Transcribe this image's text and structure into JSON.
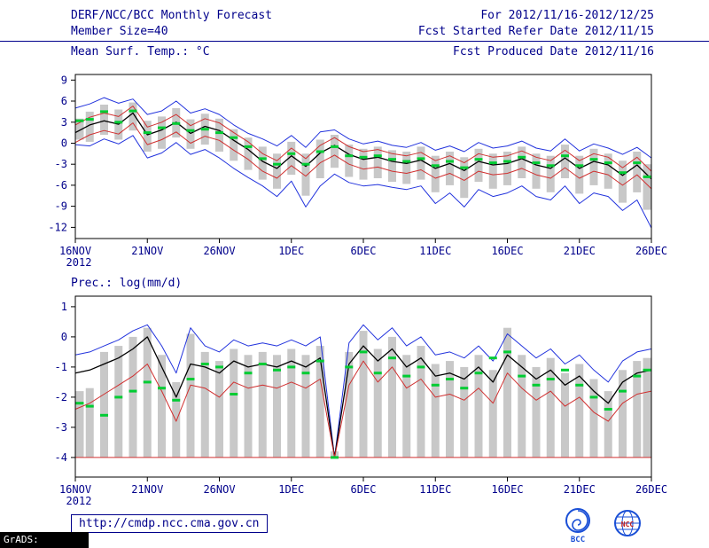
{
  "header": {
    "title": "DERF/NCC/BCC Monthly Forecast",
    "member_size": "Member Size=40",
    "temp_var_label": "Mean Surf. Temp.: °C",
    "for_range": "For 2012/11/16-2012/12/25",
    "refer_date": "Fcst Started Refer Date 2012/11/15",
    "produced_date": "Fcst Produced Date 2012/11/16",
    "accent_color": "#00008b"
  },
  "precip_panel_label": "Prec.: log(mm/d)",
  "footer": {
    "url": "http://cmdp.ncc.cma.gov.cn",
    "grads_credit": "GrADS: COLA/IGES",
    "logos": [
      "BCC",
      "NCC"
    ]
  },
  "colors": {
    "envelope_blue": "#2233dd",
    "quartile_red": "#d03030",
    "mean_black": "#000000",
    "marker_green": "#00cc33",
    "spread_gray": "#c8c8c8",
    "annot_navy": "#00008b"
  },
  "chart_data": [
    {
      "type": "line",
      "title": "Mean Surf. Temp.: °C",
      "x_unit": "forecast day (16NOV2012 = 0)",
      "n_points": 41,
      "x_day_range": [
        0,
        40
      ],
      "ylim": [
        -13.6,
        9.8
      ],
      "yticks": [
        9,
        6,
        3,
        0,
        -3,
        -6,
        -9,
        -12
      ],
      "xticks": [
        {
          "day": 0,
          "label": "16NOV"
        },
        {
          "day": 5,
          "label": "21NOV"
        },
        {
          "day": 10,
          "label": "26NOV"
        },
        {
          "day": 15,
          "label": "1DEC"
        },
        {
          "day": 20,
          "label": "6DEC"
        },
        {
          "day": 25,
          "label": "11DEC"
        },
        {
          "day": 30,
          "label": "16DEC"
        },
        {
          "day": 35,
          "label": "21DEC"
        },
        {
          "day": 40,
          "label": "26DEC"
        }
      ],
      "x_year_label": "2012",
      "grid": false,
      "legend": false,
      "bars": {
        "name": "ensemble spread bars",
        "color": "#c8c8c8",
        "top": [
          3.5,
          4.5,
          5.5,
          4.8,
          5.8,
          3.2,
          3.8,
          5.0,
          3.4,
          4.2,
          3.5,
          2.0,
          0.8,
          -0.5,
          -1.5,
          0.2,
          -1.5,
          0.5,
          1.2,
          -0.2,
          -0.8,
          -0.5,
          -1.0,
          -1.2,
          -0.5,
          -1.8,
          -1.2,
          -2.0,
          -0.8,
          -1.5,
          -1.2,
          -0.5,
          -1.5,
          -1.8,
          -0.2,
          -1.8,
          -0.8,
          -1.5,
          -2.5,
          -1.2,
          -3.0
        ],
        "bottom": [
          0.5,
          0.2,
          1.2,
          0.5,
          1.8,
          -1.2,
          -0.8,
          0.8,
          -0.8,
          -0.2,
          -1.2,
          -2.5,
          -3.8,
          -5.2,
          -6.5,
          -4.5,
          -7.5,
          -5.0,
          -3.5,
          -4.8,
          -5.2,
          -5.0,
          -5.5,
          -5.8,
          -5.2,
          -7.0,
          -6.0,
          -7.8,
          -5.5,
          -6.5,
          -6.0,
          -5.0,
          -6.5,
          -7.0,
          -5.0,
          -7.2,
          -6.0,
          -6.5,
          -8.5,
          -7.0,
          -9.5
        ]
      },
      "series": [
        {
          "name": "ensemble max (blue)",
          "color": "#2233dd",
          "width": 1,
          "values": [
            5.0,
            5.6,
            6.5,
            5.7,
            6.3,
            4.1,
            4.6,
            6.0,
            4.3,
            4.9,
            4.1,
            2.6,
            1.4,
            0.6,
            -0.4,
            1.1,
            -0.6,
            1.6,
            1.9,
            0.6,
            -0.1,
            0.3,
            -0.3,
            -0.6,
            0.1,
            -1.0,
            -0.4,
            -1.2,
            0.1,
            -0.7,
            -0.4,
            0.3,
            -0.7,
            -1.1,
            0.6,
            -1.1,
            -0.1,
            -0.7,
            -1.6,
            -0.6,
            -2.1
          ]
        },
        {
          "name": "upper quartile (red)",
          "color": "#d03030",
          "width": 1,
          "values": [
            2.6,
            3.7,
            4.3,
            3.8,
            5.3,
            2.3,
            3.0,
            4.1,
            2.5,
            3.5,
            2.9,
            1.5,
            0.2,
            -1.5,
            -2.5,
            -0.7,
            -2.2,
            -0.3,
            0.8,
            -0.5,
            -1.2,
            -0.9,
            -1.5,
            -1.8,
            -1.3,
            -2.5,
            -1.8,
            -2.8,
            -1.5,
            -2.0,
            -1.8,
            -1.1,
            -2.0,
            -2.5,
            -1.0,
            -2.5,
            -1.5,
            -2.0,
            -3.5,
            -2.0,
            -4.0
          ]
        },
        {
          "name": "ensemble mean (black)",
          "color": "#000000",
          "width": 1.3,
          "values": [
            1.5,
            2.6,
            3.2,
            2.7,
            4.3,
            1.2,
            1.9,
            3.0,
            1.4,
            2.4,
            1.8,
            0.4,
            -0.9,
            -2.6,
            -3.6,
            -1.8,
            -3.3,
            -1.4,
            -0.3,
            -1.6,
            -2.3,
            -2.0,
            -2.6,
            -2.9,
            -2.4,
            -3.6,
            -2.9,
            -3.9,
            -2.6,
            -3.1,
            -2.9,
            -2.2,
            -3.1,
            -3.6,
            -2.1,
            -3.6,
            -2.6,
            -3.1,
            -4.6,
            -3.1,
            -5.1
          ]
        },
        {
          "name": "lower quartile (red)",
          "color": "#d03030",
          "width": 1,
          "values": [
            0.1,
            1.2,
            1.8,
            1.3,
            2.9,
            -0.2,
            0.5,
            1.6,
            0.0,
            1.0,
            0.4,
            -1.0,
            -2.3,
            -4.0,
            -5.0,
            -3.2,
            -4.7,
            -2.8,
            -1.7,
            -3.0,
            -3.7,
            -3.4,
            -4.0,
            -4.3,
            -3.8,
            -5.0,
            -4.3,
            -5.3,
            -4.0,
            -4.5,
            -4.3,
            -3.6,
            -4.5,
            -5.0,
            -3.5,
            -5.0,
            -4.0,
            -4.5,
            -6.0,
            -4.5,
            -6.5
          ]
        },
        {
          "name": "ensemble min (blue)",
          "color": "#2233dd",
          "width": 1,
          "values": [
            -0.2,
            -0.4,
            0.6,
            -0.1,
            1.1,
            -2.1,
            -1.4,
            0.1,
            -1.6,
            -0.9,
            -2.1,
            -3.6,
            -4.9,
            -6.1,
            -7.6,
            -5.4,
            -9.1,
            -6.1,
            -4.4,
            -5.6,
            -6.1,
            -5.9,
            -6.3,
            -6.6,
            -6.1,
            -8.6,
            -7.1,
            -9.1,
            -6.6,
            -7.6,
            -7.1,
            -6.1,
            -7.6,
            -8.1,
            -6.1,
            -8.6,
            -7.1,
            -7.6,
            -9.6,
            -8.1,
            -12.1
          ]
        }
      ],
      "markers": {
        "name": "green dash markers (median)",
        "color": "#00cc33",
        "values": [
          3.2,
          3.4,
          4.5,
          3.0,
          4.6,
          1.5,
          2.2,
          2.8,
          1.8,
          2.0,
          1.5,
          0.8,
          -0.5,
          -2.2,
          -3.0,
          -1.5,
          -3.0,
          -1.2,
          -0.5,
          -1.8,
          -2.0,
          -1.8,
          -2.3,
          -2.6,
          -2.2,
          -3.2,
          -2.6,
          -3.5,
          -2.3,
          -2.8,
          -2.6,
          -2.0,
          -2.8,
          -3.2,
          -1.8,
          -3.2,
          -2.3,
          -2.8,
          -4.2,
          -2.8,
          -4.8
        ]
      }
    },
    {
      "type": "line",
      "title": "Prec.: log(mm/d)",
      "x_unit": "forecast day (16NOV2012 = 0)",
      "n_points": 41,
      "x_day_range": [
        0,
        40
      ],
      "ylim": [
        -4.65,
        1.35
      ],
      "yticks": [
        1,
        0,
        -1,
        -2,
        -3,
        -4
      ],
      "xticks": [
        {
          "day": 0,
          "label": "16NOV"
        },
        {
          "day": 5,
          "label": "21NOV"
        },
        {
          "day": 10,
          "label": "26NOV"
        },
        {
          "day": 15,
          "label": "1DEC"
        },
        {
          "day": 20,
          "label": "6DEC"
        },
        {
          "day": 25,
          "label": "11DEC"
        },
        {
          "day": 30,
          "label": "16DEC"
        },
        {
          "day": 35,
          "label": "21DEC"
        },
        {
          "day": 40,
          "label": "26DEC"
        }
      ],
      "x_year_label": "2012",
      "grid": false,
      "legend": false,
      "bars": {
        "name": "ensemble spread bars",
        "color": "#c8c8c8",
        "top": [
          -1.8,
          -1.7,
          -0.5,
          -0.3,
          0.0,
          0.3,
          -0.6,
          -1.5,
          0.1,
          -0.5,
          -0.8,
          -0.4,
          -0.6,
          -0.5,
          -0.6,
          -0.4,
          -0.6,
          -0.3,
          -3.8,
          -0.5,
          0.2,
          -0.4,
          0.0,
          -0.6,
          -0.3,
          -0.9,
          -0.8,
          -1.0,
          -0.6,
          -1.1,
          0.3,
          -0.6,
          -1.0,
          -0.7,
          -1.2,
          -0.9,
          -1.4,
          -1.8,
          -1.1,
          -0.8,
          -0.7
        ],
        "bottom": -4
      },
      "series": [
        {
          "name": "ensemble max (blue)",
          "color": "#2233dd",
          "width": 1,
          "values": [
            -0.6,
            -0.5,
            -0.3,
            -0.1,
            0.2,
            0.4,
            -0.3,
            -1.2,
            0.3,
            -0.3,
            -0.5,
            -0.1,
            -0.3,
            -0.2,
            -0.3,
            -0.1,
            -0.3,
            0.0,
            -4.0,
            -0.2,
            0.4,
            -0.1,
            0.3,
            -0.3,
            0.0,
            -0.6,
            -0.5,
            -0.7,
            -0.3,
            -0.8,
            0.1,
            -0.3,
            -0.7,
            -0.4,
            -0.9,
            -0.6,
            -1.1,
            -1.5,
            -0.8,
            -0.5,
            -0.4
          ]
        },
        {
          "name": "ensemble mean (black)",
          "color": "#000000",
          "width": 1.3,
          "values": [
            -1.2,
            -1.1,
            -0.9,
            -0.7,
            -0.4,
            0.0,
            -1.0,
            -2.0,
            -0.9,
            -1.0,
            -1.2,
            -0.8,
            -1.0,
            -0.9,
            -1.0,
            -0.8,
            -1.0,
            -0.7,
            -4.0,
            -0.9,
            -0.3,
            -0.8,
            -0.4,
            -1.0,
            -0.7,
            -1.3,
            -1.2,
            -1.4,
            -1.0,
            -1.5,
            -0.6,
            -1.0,
            -1.4,
            -1.1,
            -1.6,
            -1.3,
            -1.8,
            -2.2,
            -1.5,
            -1.2,
            -1.1
          ]
        },
        {
          "name": "lower quartile (red)",
          "color": "#d03030",
          "width": 1,
          "values": [
            -2.4,
            -2.2,
            -1.9,
            -1.6,
            -1.3,
            -0.9,
            -1.8,
            -2.8,
            -1.6,
            -1.7,
            -2.0,
            -1.5,
            -1.7,
            -1.6,
            -1.7,
            -1.5,
            -1.7,
            -1.4,
            -4.0,
            -1.6,
            -0.8,
            -1.5,
            -1.0,
            -1.7,
            -1.4,
            -2.0,
            -1.9,
            -2.1,
            -1.7,
            -2.2,
            -1.2,
            -1.7,
            -2.1,
            -1.8,
            -2.3,
            -2.0,
            -2.5,
            -2.8,
            -2.2,
            -1.9,
            -1.8
          ]
        },
        {
          "name": "ensemble min floor (red, log=-4)",
          "color": "#d03030",
          "width": 1,
          "values": -4
        }
      ],
      "markers": {
        "name": "green dash markers (median)",
        "color": "#00cc33",
        "values": [
          -2.2,
          -2.3,
          -2.6,
          -2.0,
          -1.8,
          -1.5,
          -1.7,
          -2.1,
          -1.4,
          -0.9,
          -1.0,
          -1.9,
          -1.2,
          -0.9,
          -1.1,
          -1.0,
          -1.2,
          -0.8,
          -4.0,
          -1.0,
          -0.5,
          -1.2,
          -0.7,
          -1.3,
          -1.0,
          -1.6,
          -1.4,
          -1.7,
          -1.2,
          -0.7,
          -0.5,
          -1.3,
          -1.6,
          -1.4,
          -1.1,
          -1.6,
          -2.0,
          -2.4,
          -1.8,
          -1.3,
          -1.1
        ]
      }
    }
  ]
}
